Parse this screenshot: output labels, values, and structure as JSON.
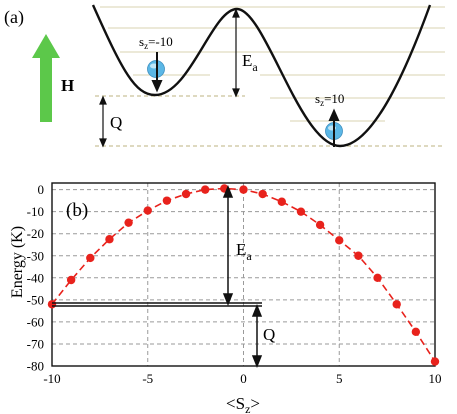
{
  "panel_a": {
    "label": "(a)",
    "field_label": "H",
    "left_state_label": "s",
    "left_state_sub": "z",
    "left_state_value": "=-10",
    "right_state_label": "s",
    "right_state_sub": "z",
    "right_state_value": "=10",
    "barrier_label": "E",
    "barrier_sub": "a",
    "q_label": "Q",
    "colors": {
      "arrow_green": "#5cc84a",
      "ball": "#5bb7e6",
      "dashed": "#c9c29a",
      "levels": "#d9d3b0"
    }
  },
  "panel_b": {
    "label": "(b)",
    "ea_label": "E",
    "ea_sub": "a",
    "q_label": "Q",
    "ylabel": "Energy (K)",
    "xlabel_main": "<S",
    "xlabel_sub": "z",
    "xlabel_end": ">",
    "x_ticks": [
      "-10",
      "-5",
      "0",
      "5",
      "10"
    ],
    "y_ticks": [
      "0",
      "-10",
      "-20",
      "-30",
      "-40",
      "-50",
      "-60",
      "-70",
      "-80"
    ]
  },
  "chart_data": {
    "type": "scatter",
    "x": [
      -10,
      -9,
      -8,
      -7,
      -6,
      -5,
      -4,
      -3,
      -2,
      -1,
      0,
      1,
      2,
      3,
      4,
      5,
      6,
      7,
      8,
      9,
      10
    ],
    "y": [
      -52,
      -41,
      -31,
      -22.5,
      -15,
      -9.5,
      -5,
      -2,
      0,
      0.5,
      0,
      -2,
      -5.5,
      -10,
      -16,
      -23,
      -30,
      -40,
      -52,
      -64.5,
      -78
    ],
    "xlim": [
      -10,
      10
    ],
    "ylim": [
      -80,
      3
    ],
    "color": "#e8221c",
    "line_style": "dashed",
    "grid": true
  }
}
